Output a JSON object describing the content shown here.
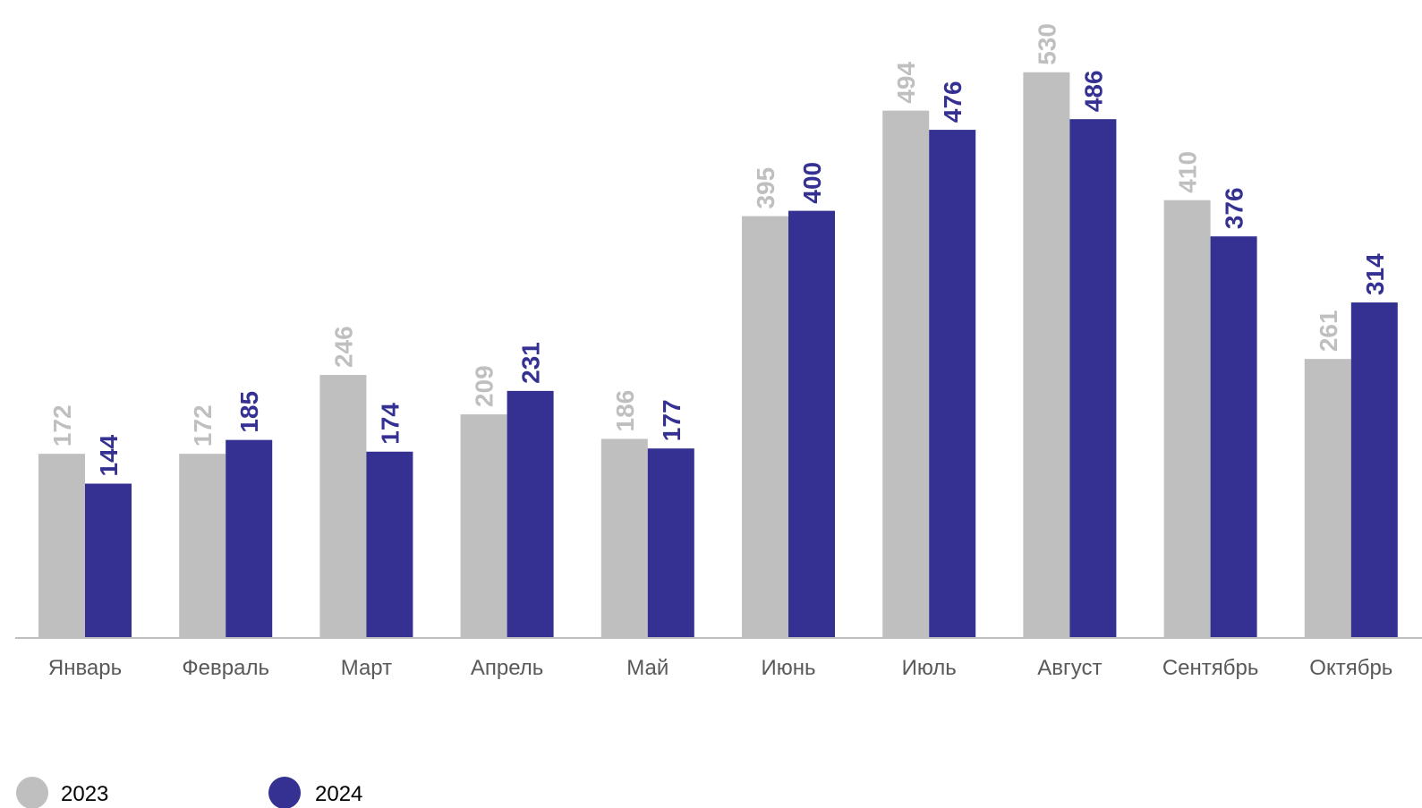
{
  "chart_data": {
    "type": "bar",
    "title": "",
    "xlabel": "",
    "ylabel": "",
    "ylim": [
      0,
      550
    ],
    "grid": false,
    "legend_position": "bottom-left",
    "categories": [
      "Январь",
      "Февраль",
      "Март",
      "Апрель",
      "Май",
      "Июнь",
      "Июль",
      "Август",
      "Сентябрь",
      "Октябрь"
    ],
    "series": [
      {
        "name": "2023",
        "color": "#bfbfbf",
        "label_color": "#bfbfbf",
        "values": [
          172,
          172,
          246,
          209,
          186,
          395,
          494,
          530,
          410,
          261
        ]
      },
      {
        "name": "2024",
        "color": "#353192",
        "label_color": "#353192",
        "values": [
          144,
          185,
          174,
          231,
          177,
          400,
          476,
          486,
          376,
          314
        ]
      }
    ]
  }
}
